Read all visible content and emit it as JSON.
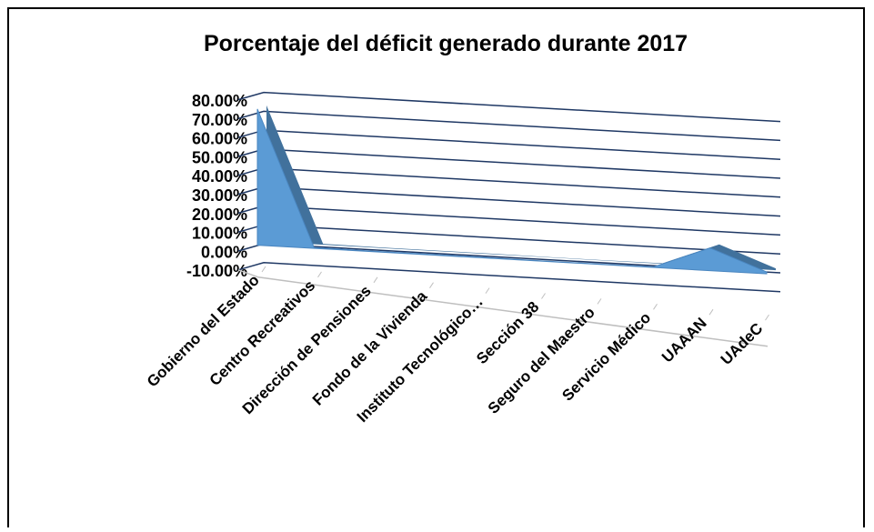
{
  "chart_data": {
    "type": "area3d",
    "title": "Porcentaje del déficit generado durante 2017",
    "categories": [
      "Gobierno del Estado",
      "Centro Recreativos",
      "Dirección de Pensiones",
      "Fondo de la Vivienda",
      "Instituto Tecnológico…",
      "Sección 38",
      "Seguro del Maestro",
      "Servicio Médico",
      "UAAAN",
      "UAdeC"
    ],
    "values": [
      72,
      0.5,
      0.3,
      0.3,
      0.3,
      0.2,
      0.2,
      0.3,
      12,
      1
    ],
    "color": "#5b9bd5",
    "ylim": [
      -10,
      80
    ],
    "yticks": [
      {
        "value": 80,
        "label": "80.00%"
      },
      {
        "value": 70,
        "label": "70.00%"
      },
      {
        "value": 60,
        "label": "60.00%"
      },
      {
        "value": 50,
        "label": "50.00%"
      },
      {
        "value": 40,
        "label": "40.00%"
      },
      {
        "value": 30,
        "label": "30.00%"
      },
      {
        "value": 20,
        "label": "20.00%"
      },
      {
        "value": 10,
        "label": "10.00%"
      },
      {
        "value": 0,
        "label": "0.00%"
      },
      {
        "value": -10,
        "label": "-10.00%"
      }
    ],
    "grid": true
  }
}
